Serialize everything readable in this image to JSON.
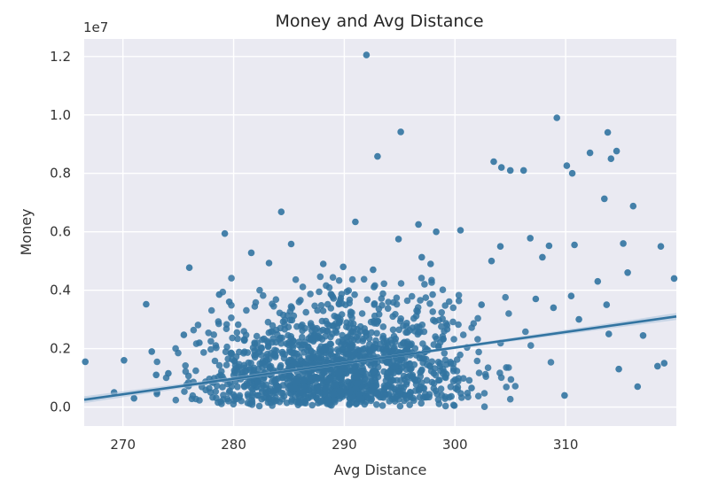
{
  "chart_data": {
    "type": "scatter",
    "title": "Money and Avg Distance",
    "xlabel": "Avg Distance",
    "ylabel": "Money",
    "y_offset_label": "1e7",
    "xlim": [
      266.5,
      320
    ],
    "ylim": [
      -0.065,
      1.26
    ],
    "y_unit_multiplier": 10000000,
    "xticks": [
      270,
      280,
      290,
      300,
      310
    ],
    "yticks": [
      0.0,
      0.2,
      0.4,
      0.6,
      0.8,
      1.0,
      1.2
    ],
    "ytick_labels": [
      "0.0",
      "0.2",
      "0.4",
      "0.6",
      "0.8",
      "1.0",
      "1.2"
    ],
    "grid": true,
    "background": "#eaeaf2",
    "point_color": "#3274a1",
    "line_color": "#3274a1",
    "ci_color": "#a9c3dd",
    "regression": {
      "x": [
        266.5,
        320
      ],
      "y": [
        0.025,
        0.31
      ],
      "ci_halfwidth_ends": 0.012,
      "ci_halfwidth_mid": 0.005
    },
    "highlighted_points": {
      "x": [
        292.0,
        309.2,
        295.1,
        313.8,
        293.0,
        303.5,
        304.2,
        305.0,
        306.2,
        310.1,
        310.6,
        312.2,
        313.5,
        314.1,
        314.6,
        284.3,
        279.2,
        291.0,
        296.7,
        298.3,
        300.5,
        304.1,
        306.8,
        308.5,
        310.8,
        316.1,
        318.6,
        315.2,
        294.9,
        285.2,
        297.0,
        276.0,
        281.6,
        283.2,
        288.1,
        289.9,
        292.6,
        297.8,
        303.3,
        307.9,
        312.9,
        315.6,
        319.8,
        266.6,
        272.1,
        270.1,
        273.0,
        275.5,
        278.7,
        279.6,
        308.9,
        311.2,
        313.7,
        317.0,
        318.3,
        269.2,
        271.0,
        272.6,
        274.1,
        301.5,
        309.9,
        314.8,
        316.5,
        318.9,
        276.9,
        302.4,
        307.3,
        310.5,
        313.9
      ],
      "y": [
        1.205,
        0.99,
        0.942,
        0.94,
        0.858,
        0.84,
        0.82,
        0.81,
        0.81,
        0.826,
        0.8,
        0.87,
        0.713,
        0.85,
        0.876,
        0.668,
        0.594,
        0.634,
        0.625,
        0.6,
        0.605,
        0.55,
        0.578,
        0.552,
        0.555,
        0.688,
        0.55,
        0.56,
        0.575,
        0.558,
        0.513,
        0.477,
        0.528,
        0.493,
        0.49,
        0.48,
        0.47,
        0.49,
        0.5,
        0.513,
        0.43,
        0.46,
        0.44,
        0.155,
        0.352,
        0.16,
        0.11,
        0.247,
        0.385,
        0.36,
        0.34,
        0.3,
        0.35,
        0.245,
        0.14,
        0.05,
        0.03,
        0.19,
        0.115,
        0.065,
        0.04,
        0.13,
        0.07,
        0.15,
        0.22,
        0.35,
        0.37,
        0.38,
        0.25
      ]
    },
    "cloud_summary": {
      "count": 1450,
      "x_center": 289.5,
      "x_spread": 7.0,
      "y_typical_max": 0.45
    }
  }
}
